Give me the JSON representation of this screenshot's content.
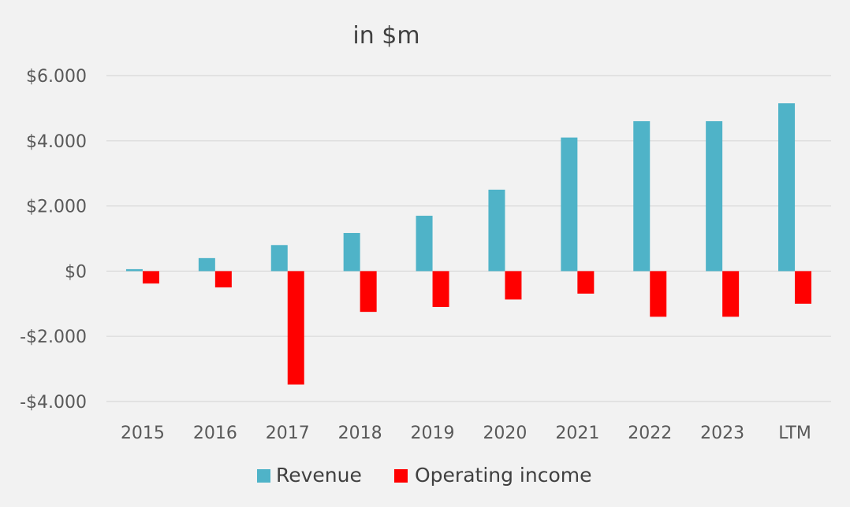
{
  "chart_data": {
    "type": "bar",
    "title": "in $m",
    "xlabel": "",
    "ylabel": "",
    "categories": [
      "2015",
      "2016",
      "2017",
      "2018",
      "2019",
      "2020",
      "2021",
      "2022",
      "2023",
      "LTM"
    ],
    "series": [
      {
        "name": "Revenue",
        "color": "#4fb3c8",
        "values": [
          60,
          400,
          800,
          1170,
          1700,
          2500,
          4100,
          4600,
          4600,
          5150
        ]
      },
      {
        "name": "Operating income",
        "color": "#ff0000",
        "values": [
          -380,
          -500,
          -3480,
          -1250,
          -1100,
          -870,
          -690,
          -1400,
          -1400,
          -1000
        ]
      }
    ],
    "ylim": [
      -4000,
      6000
    ],
    "yticks": [
      6000,
      4000,
      2000,
      0,
      -2000,
      -4000
    ],
    "ytick_labels": [
      "$6.000",
      "$4.000",
      "$2.000",
      "$0",
      "-$2.000",
      "-$4.000"
    ],
    "grid": true,
    "legend_position": "bottom"
  }
}
